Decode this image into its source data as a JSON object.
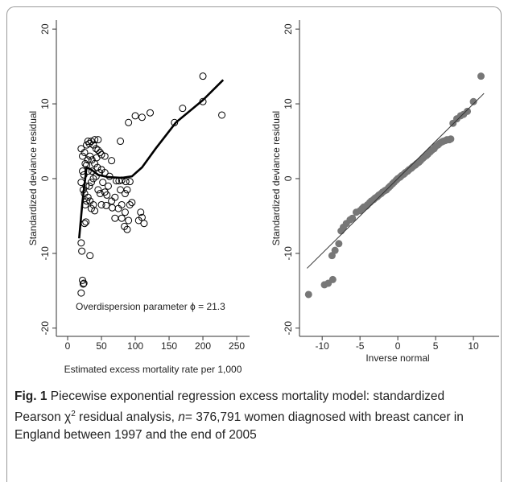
{
  "chart_data": [
    {
      "type": "scatter",
      "xlabel": "Estimated excess mortality rate per 1,000",
      "ylabel": "Standardized deviance residual",
      "annotation": "Overdispersion parameter ϕ = 21.3",
      "xlim": [
        -16.7,
        269
      ],
      "ylim": [
        -21.1,
        21.2
      ],
      "xticks": [
        0,
        50,
        100,
        150,
        200,
        250
      ],
      "yticks": [
        -20,
        -10,
        0,
        10,
        20
      ],
      "series": [
        {
          "type": "scatter",
          "color": "#000000",
          "fill": "none",
          "x": [
            21,
            20,
            20,
            22,
            23,
            24,
            33,
            25,
            27,
            20,
            22,
            25,
            28,
            30,
            32,
            35,
            38,
            40,
            45,
            42,
            48,
            50,
            55,
            22,
            24,
            26,
            28,
            30,
            33,
            36,
            40,
            44,
            20,
            23,
            25,
            27,
            30,
            33,
            35,
            38,
            40,
            45,
            48,
            50,
            55,
            58,
            60,
            65,
            70,
            75,
            78,
            80,
            85,
            88,
            72,
            76,
            80,
            86,
            92,
            62,
            55,
            50,
            42,
            38,
            35,
            80,
            84,
            88,
            90,
            92,
            85,
            108,
            110,
            113,
            78,
            65,
            90,
            100,
            110,
            122,
            158,
            170,
            200,
            200,
            228,
            30,
            32,
            45,
            52,
            26,
            28,
            36,
            43,
            47,
            57,
            66,
            70,
            95,
            105
          ],
          "values": [
            -9.7,
            -8.6,
            -15.3,
            -13.6,
            -14.1,
            -14.0,
            -10.3,
            -6,
            -5.8,
            4,
            3,
            3.5,
            4.5,
            5,
            4.7,
            5,
            4.5,
            5.2,
            5.2,
            4,
            3.5,
            3.2,
            3,
            1,
            0.5,
            2,
            1.8,
            2.5,
            3,
            2.5,
            2,
            1.5,
            -0.5,
            -1.5,
            -2,
            -1,
            -2.5,
            -3,
            -4,
            -3.5,
            -4.3,
            -1.5,
            -2,
            -3.5,
            -1.8,
            -2.2,
            -1,
            -3,
            -2.5,
            -4,
            -1.5,
            -3.5,
            -2,
            -1.5,
            -0.3,
            -0.3,
            -0.2,
            -0.4,
            -0.4,
            0.3,
            0.8,
            1.2,
            0.3,
            0,
            -0.5,
            -5.3,
            -6.4,
            -6.8,
            -5.6,
            -3.5,
            -4.5,
            -4.5,
            -5.2,
            -6,
            5,
            2.4,
            7.5,
            8.4,
            8.2,
            8.8,
            7.5,
            9.4,
            13.7,
            10.3,
            8.5,
            1,
            -1,
            3.8,
            -0.5,
            -3.5,
            -3,
            1,
            2.8,
            0.8,
            -3.6,
            -3.9,
            -5.3,
            -3.2,
            -5.6
          ]
        },
        {
          "type": "line",
          "color": "#000000",
          "x": [
            17,
            22,
            28,
            35,
            45,
            60,
            80,
            95,
            110,
            130,
            160,
            200,
            230
          ],
          "values": [
            -8,
            -3,
            1.5,
            1.2,
            0.5,
            0.2,
            0.1,
            0.3,
            1.5,
            4,
            7.5,
            10.5,
            13.2
          ]
        }
      ]
    },
    {
      "type": "scatter",
      "xlabel": "Inverse normal",
      "ylabel": "Standardized deviance residual",
      "xlim": [
        -13,
        13.4
      ],
      "ylim": [
        -21.1,
        21.2
      ],
      "xticks": [
        -10,
        -5,
        0,
        5,
        10
      ],
      "yticks": [
        -20,
        -10,
        0,
        10,
        20
      ],
      "series": [
        {
          "type": "scatter",
          "color": "#777777",
          "fill": "#777777",
          "x": [
            -11.8,
            -9.7,
            -9.2,
            -8.6,
            -8.7,
            -8.3,
            -7.8,
            -7.5,
            -7.2,
            -6.8,
            -6.3,
            -6,
            -5.5,
            -5,
            -4.5,
            -4,
            -3.5,
            -3,
            -2.5,
            -2,
            -1.5,
            -1,
            -0.5,
            0,
            0.5,
            1,
            1.5,
            2,
            2.5,
            3,
            3.5,
            4,
            4.5,
            5,
            5.5,
            6,
            6.5,
            7,
            7.3,
            7.8,
            8.3,
            8.7,
            9.2,
            10,
            11,
            -4.7,
            -4.2,
            -3.7,
            -3.2,
            -2.7,
            -2.2,
            -1.7,
            -1.2,
            -0.7,
            -0.2,
            0.3,
            0.8,
            1.3,
            1.8,
            2.3,
            2.8,
            3.3,
            3.8,
            4.3,
            4.8,
            5.3,
            5.8,
            6.3,
            6.8
          ],
          "values": [
            -15.5,
            -14.2,
            -14,
            -13.5,
            -10.3,
            -9.6,
            -8.7,
            -7,
            -6.5,
            -6,
            -5.5,
            -5.3,
            -4.5,
            -4.3,
            -3.8,
            -3.5,
            -3,
            -2.6,
            -2.2,
            -1.8,
            -1.5,
            -1,
            -0.5,
            0,
            0.4,
            0.8,
            1.2,
            1.6,
            2,
            2.4,
            2.9,
            3.3,
            3.8,
            4.3,
            4.7,
            5,
            5.2,
            5.3,
            7.4,
            8,
            8.4,
            8.6,
            9,
            10.3,
            13.7,
            -4,
            -3.7,
            -3.2,
            -2.8,
            -2.4,
            -2,
            -1.6,
            -1.2,
            -0.7,
            -0.2,
            0.2,
            0.6,
            1,
            1.4,
            1.8,
            2.2,
            2.7,
            3.1,
            3.6,
            4,
            4.5,
            4.9,
            5.1,
            5.2
          ]
        },
        {
          "type": "line",
          "color": "#333333",
          "x": [
            -12,
            11.4
          ],
          "values": [
            -12,
            11.4
          ]
        }
      ]
    }
  ],
  "caption": {
    "label": "Fig. 1",
    "text1": "Piecewise exponential regression excess mortality model: standardized Pearson χ",
    "sup": "2",
    "text2": " residual analysis, ",
    "n": "n",
    "text3": "= 376,791 women diagnosed with breast cancer in England between 1997 and the end of 2005"
  }
}
